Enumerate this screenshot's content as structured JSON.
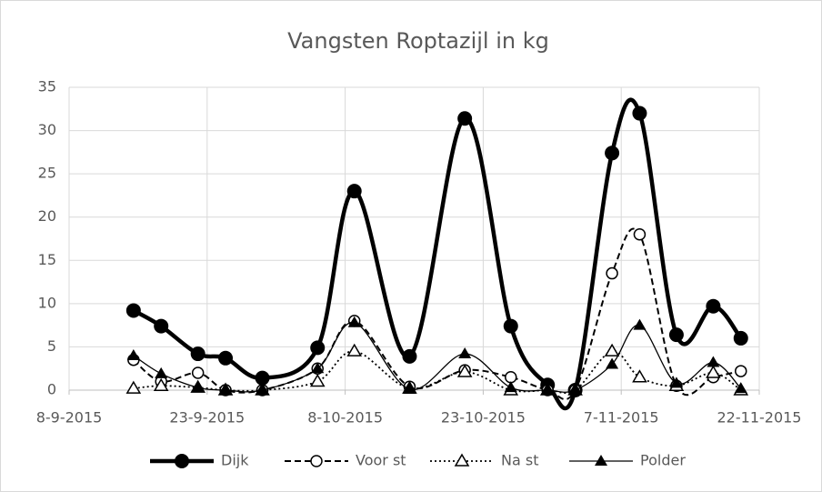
{
  "chart_data": {
    "type": "line",
    "title": "Vangsten Roptazijl in kg",
    "x": [
      "2015-09-15",
      "2015-09-18",
      "2015-09-22",
      "2015-09-25",
      "2015-09-29",
      "2015-10-05",
      "2015-10-09",
      "2015-10-15",
      "2015-10-21",
      "2015-10-26",
      "2015-10-30",
      "2015-11-02",
      "2015-11-06",
      "2015-11-09",
      "2015-11-13",
      "2015-11-17",
      "2015-11-20"
    ],
    "series": [
      {
        "name": "Dijk",
        "color": "#000000",
        "line": "solid-thick",
        "marker": "filled-circle",
        "values": [
          9.2,
          7.4,
          4.2,
          3.7,
          1.4,
          4.9,
          23.0,
          3.9,
          31.4,
          7.4,
          0.6,
          0,
          27.4,
          32.0,
          6.4,
          9.7,
          6.0
        ]
      },
      {
        "name": "Voor st",
        "color": "#000000",
        "line": "dashed",
        "marker": "open-circle",
        "values": [
          3.5,
          1.0,
          2.0,
          0,
          0,
          2.5,
          8.0,
          0.4,
          2.3,
          1.5,
          0,
          0,
          13.5,
          18.0,
          0.5,
          1.5,
          2.2
        ]
      },
      {
        "name": "Na st",
        "color": "#000000",
        "line": "dotted",
        "marker": "open-triangle",
        "values": [
          0.2,
          0.5,
          0.3,
          0,
          0,
          1.0,
          4.5,
          0.2,
          2.1,
          0,
          0,
          0,
          4.5,
          1.5,
          0.5,
          2.0,
          0
        ]
      },
      {
        "name": "Polder",
        "color": "#000000",
        "line": "solid",
        "marker": "filled-triangle",
        "values": [
          4.0,
          1.9,
          0.3,
          0,
          0,
          2.5,
          7.8,
          0.1,
          4.2,
          0.3,
          0,
          0,
          3.0,
          7.5,
          0.8,
          3.2,
          0.2
        ]
      }
    ],
    "xlim": [
      "2015-09-08",
      "2015-11-22"
    ],
    "xticks": [
      {
        "value": "2015-09-08",
        "label": "8-9-2015"
      },
      {
        "value": "2015-09-23",
        "label": "23-9-2015"
      },
      {
        "value": "2015-10-08",
        "label": "8-10-2015"
      },
      {
        "value": "2015-10-23",
        "label": "23-10-2015"
      },
      {
        "value": "2015-11-07",
        "label": "7-11-2015"
      },
      {
        "value": "2015-11-22",
        "label": "22-11-2015"
      }
    ],
    "ylim": [
      0,
      35
    ],
    "yticks": [
      0,
      5,
      10,
      15,
      20,
      25,
      30,
      35
    ],
    "grid": true,
    "legend": "bottom"
  }
}
